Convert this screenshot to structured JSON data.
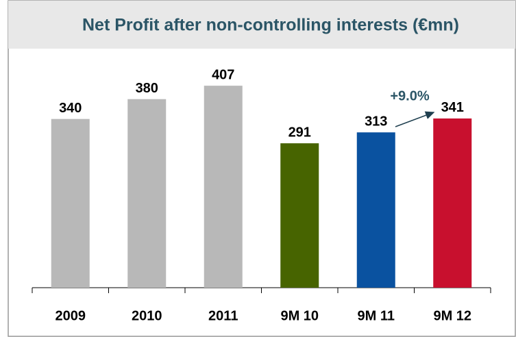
{
  "chart_data": {
    "type": "bar",
    "title": "Net Profit after non-controlling interests (€mn)",
    "categories": [
      "2009",
      "2010",
      "2011",
      "9M 10",
      "9M 11",
      "9M 12"
    ],
    "values": [
      340,
      380,
      407,
      291,
      313,
      341
    ],
    "colors": [
      "#b8b8b8",
      "#b8b8b8",
      "#b8b8b8",
      "#476400",
      "#0a52a0",
      "#c8102e"
    ],
    "annotation": "+9.0%",
    "ylim": [
      0,
      450
    ]
  }
}
